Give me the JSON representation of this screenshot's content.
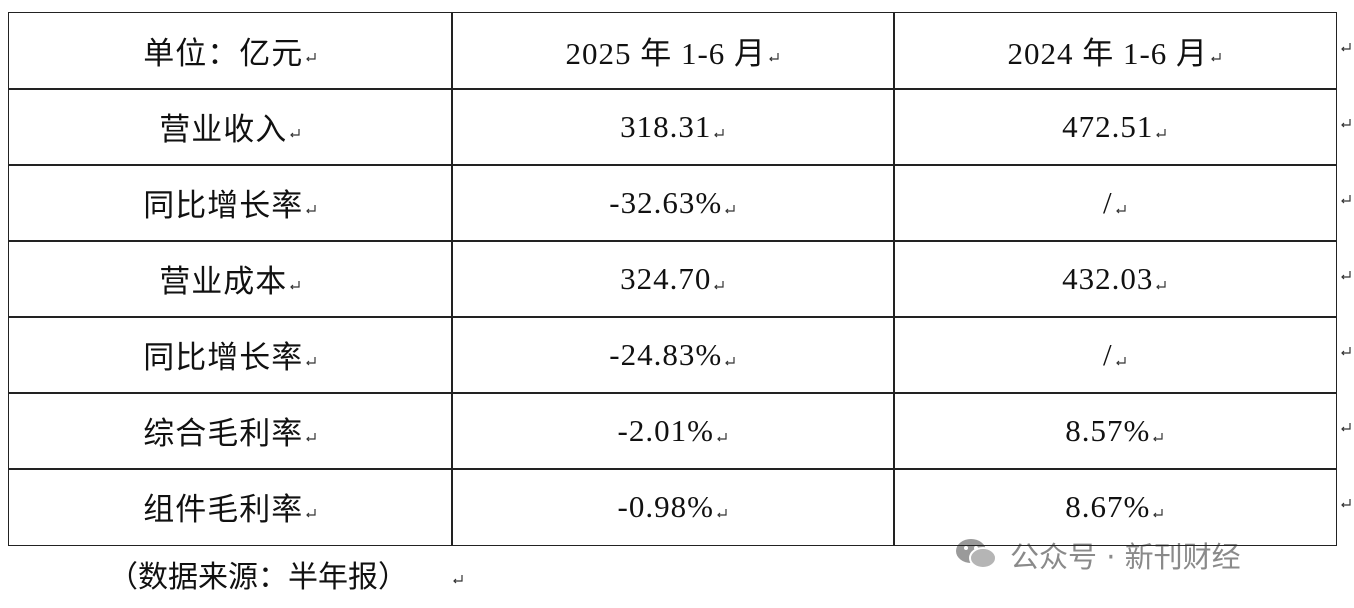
{
  "table": {
    "header": [
      "单位：亿元",
      "2025 年 1-6 月",
      "2024 年 1-6 月"
    ],
    "rows": [
      [
        "营业收入",
        "318.31",
        "472.51"
      ],
      [
        "同比增长率",
        "-32.63%",
        "/"
      ],
      [
        "营业成本",
        "324.70",
        "432.03"
      ],
      [
        "同比增长率",
        "-24.83%",
        "/"
      ],
      [
        "综合毛利率",
        "-2.01%",
        "8.57%"
      ],
      [
        "组件毛利率",
        "-0.98%",
        "8.67%"
      ]
    ]
  },
  "note": "（数据来源：半年报）",
  "watermark": "公众号 · 新刊财经"
}
